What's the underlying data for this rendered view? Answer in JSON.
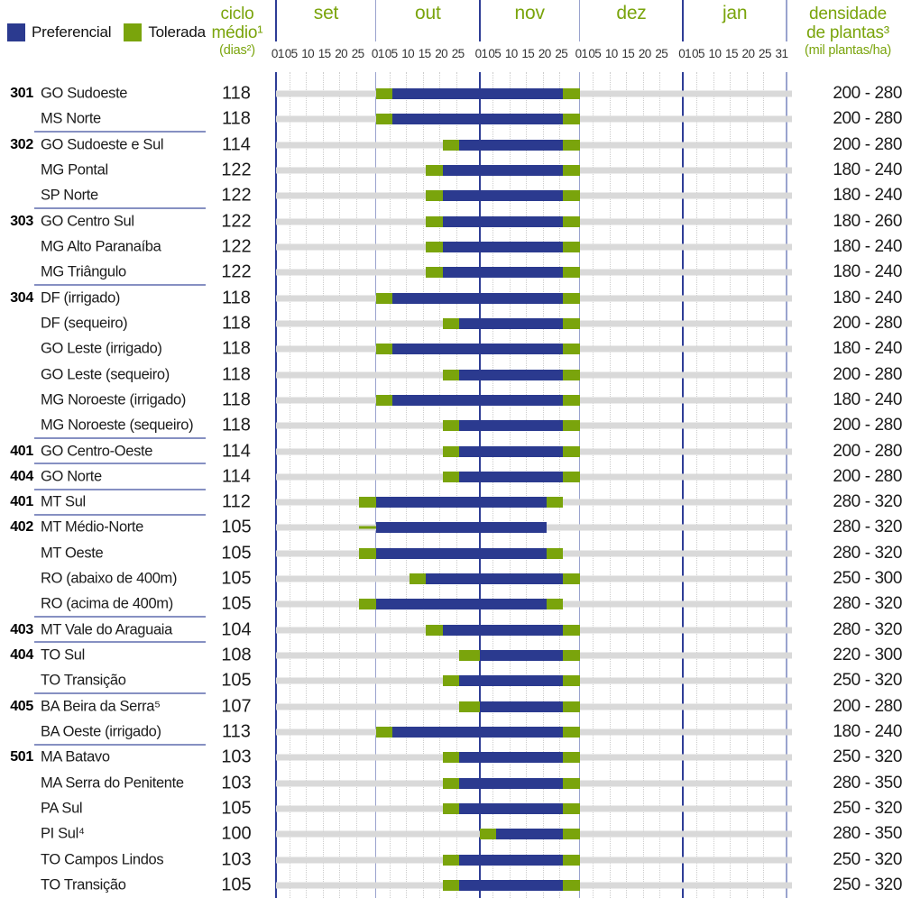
{
  "chart_data": {
    "type": "bar",
    "subtype": "gantt-planting-window",
    "season_note": "day offsets counted from 01/set (0) to 31/jan (153)",
    "season_days": 153,
    "legend": {
      "preferencial": "Preferencial",
      "tolerada": "Tolerada"
    },
    "header": {
      "ciclo": {
        "line1": "ciclo",
        "line2": "médio¹",
        "unit": "(dias²)"
      },
      "densidade": {
        "line1": "densidade",
        "line2": "de plantas³",
        "unit": "(mil plantas/ha)"
      }
    },
    "x_axis": {
      "months": [
        {
          "label": "set",
          "days": 30
        },
        {
          "label": "out",
          "days": 31
        },
        {
          "label": "nov",
          "days": 30
        },
        {
          "label": "dez",
          "days": 31
        },
        {
          "label": "jan",
          "days": 31
        }
      ],
      "tick_labels": [
        "01",
        "05",
        "10",
        "15",
        "20",
        "25"
      ],
      "tick_day_offsets": [
        0,
        4,
        9,
        14,
        19,
        24
      ],
      "last_tick": "31",
      "grid": "dotted daily pentad lines, solid month boundary lines"
    },
    "colors": {
      "preferencial": "#2b3a8f",
      "tolerada": "#7aa40c",
      "header_green": "#7aa40c",
      "track_gray": "#d9d9d9",
      "line_dark": "#2e3d96",
      "line_light": "#9aa3ce",
      "separator": "#8690c2"
    },
    "rows": [
      {
        "code": "301",
        "name": "GO Sudoeste",
        "ciclo": "118",
        "densidade": "200 - 280",
        "seg": [
          30,
          35,
          86,
          91
        ],
        "thin_lead": false,
        "sep": false
      },
      {
        "code": "",
        "name": "MS Norte",
        "ciclo": "118",
        "densidade": "200 - 280",
        "seg": [
          30,
          35,
          86,
          91
        ],
        "thin_lead": false,
        "sep": true
      },
      {
        "code": "302",
        "name": "GO Sudoeste e Sul",
        "ciclo": "114",
        "densidade": "200 - 280",
        "seg": [
          50,
          55,
          86,
          91
        ],
        "thin_lead": false,
        "sep": false
      },
      {
        "code": "",
        "name": "MG Pontal",
        "ciclo": "122",
        "densidade": "180 - 240",
        "seg": [
          45,
          50,
          86,
          91
        ],
        "thin_lead": false,
        "sep": false
      },
      {
        "code": "",
        "name": "SP Norte",
        "ciclo": "122",
        "densidade": "180 - 240",
        "seg": [
          45,
          50,
          86,
          91
        ],
        "thin_lead": false,
        "sep": true
      },
      {
        "code": "303",
        "name": "GO Centro Sul",
        "ciclo": "122",
        "densidade": "180 - 260",
        "seg": [
          45,
          50,
          86,
          91
        ],
        "thin_lead": false,
        "sep": false
      },
      {
        "code": "",
        "name": "MG Alto Paranaíba",
        "ciclo": "122",
        "densidade": "180 - 240",
        "seg": [
          45,
          50,
          86,
          91
        ],
        "thin_lead": false,
        "sep": false
      },
      {
        "code": "",
        "name": "MG Triângulo",
        "ciclo": "122",
        "densidade": "180 - 240",
        "seg": [
          45,
          50,
          86,
          91
        ],
        "thin_lead": false,
        "sep": true
      },
      {
        "code": "304",
        "name": "DF (irrigado)",
        "ciclo": "118",
        "densidade": "180 - 240",
        "seg": [
          30,
          35,
          86,
          91
        ],
        "thin_lead": false,
        "sep": false
      },
      {
        "code": "",
        "name": "DF (sequeiro)",
        "ciclo": "118",
        "densidade": "200 - 280",
        "seg": [
          50,
          55,
          86,
          91
        ],
        "thin_lead": false,
        "sep": false
      },
      {
        "code": "",
        "name": "GO Leste (irrigado)",
        "ciclo": "118",
        "densidade": "180 - 240",
        "seg": [
          30,
          35,
          86,
          91
        ],
        "thin_lead": false,
        "sep": false
      },
      {
        "code": "",
        "name": "GO Leste (sequeiro)",
        "ciclo": "118",
        "densidade": "200 - 280",
        "seg": [
          50,
          55,
          86,
          91
        ],
        "thin_lead": false,
        "sep": false
      },
      {
        "code": "",
        "name": "MG Noroeste (irrigado)",
        "ciclo": "118",
        "densidade": "180 - 240",
        "seg": [
          30,
          35,
          86,
          91
        ],
        "thin_lead": false,
        "sep": false
      },
      {
        "code": "",
        "name": "MG Noroeste (sequeiro)",
        "ciclo": "118",
        "densidade": "200 - 280",
        "seg": [
          50,
          55,
          86,
          91
        ],
        "thin_lead": false,
        "sep": true
      },
      {
        "code": "401",
        "name": "GO Centro-Oeste",
        "ciclo": "114",
        "densidade": "200 - 280",
        "seg": [
          50,
          55,
          86,
          91
        ],
        "thin_lead": false,
        "sep": true
      },
      {
        "code": "404",
        "name": "GO Norte",
        "ciclo": "114",
        "densidade": "200 - 280",
        "seg": [
          50,
          55,
          86,
          91
        ],
        "thin_lead": false,
        "sep": true
      },
      {
        "code": "401",
        "name": "MT Sul",
        "ciclo": "112",
        "densidade": "280 - 320",
        "seg": [
          25,
          30,
          81,
          86
        ],
        "thin_lead": false,
        "sep": true
      },
      {
        "code": "402",
        "name": "MT Médio-Norte",
        "ciclo": "105",
        "densidade": "280 - 320",
        "seg": [
          25,
          30,
          81,
          81
        ],
        "thin_lead": true,
        "sep": false
      },
      {
        "code": "",
        "name": "MT Oeste",
        "ciclo": "105",
        "densidade": "280 - 320",
        "seg": [
          25,
          30,
          81,
          86
        ],
        "thin_lead": false,
        "sep": false
      },
      {
        "code": "",
        "name": "RO (abaixo de 400m)",
        "ciclo": "105",
        "densidade": "250 - 300",
        "seg": [
          40,
          45,
          86,
          91
        ],
        "thin_lead": false,
        "sep": false
      },
      {
        "code": "",
        "name": "RO (acima de 400m)",
        "ciclo": "105",
        "densidade": "280 - 320",
        "seg": [
          25,
          30,
          81,
          86
        ],
        "thin_lead": false,
        "sep": true
      },
      {
        "code": "403",
        "name": "MT Vale do Araguaia",
        "ciclo": "104",
        "densidade": "280 - 320",
        "seg": [
          45,
          50,
          86,
          91
        ],
        "thin_lead": false,
        "sep": true
      },
      {
        "code": "404",
        "name": "TO Sul",
        "ciclo": "108",
        "densidade": "220 - 300",
        "seg": [
          55,
          61,
          86,
          91
        ],
        "thin_lead": false,
        "sep": false
      },
      {
        "code": "",
        "name": "TO Transição",
        "ciclo": "105",
        "densidade": "250 - 320",
        "seg": [
          50,
          55,
          86,
          91
        ],
        "thin_lead": false,
        "sep": true
      },
      {
        "code": "405",
        "name": "BA Beira da Serra⁵",
        "ciclo": "107",
        "densidade": "200 - 280",
        "seg": [
          55,
          61,
          86,
          91
        ],
        "thin_lead": false,
        "sep": false
      },
      {
        "code": "",
        "name": "BA Oeste (irrigado)",
        "ciclo": "113",
        "densidade": "180 - 240",
        "seg": [
          30,
          35,
          86,
          91
        ],
        "thin_lead": false,
        "sep": true
      },
      {
        "code": "501",
        "name": "MA Batavo",
        "ciclo": "103",
        "densidade": "250 - 320",
        "seg": [
          50,
          55,
          86,
          91
        ],
        "thin_lead": false,
        "sep": false
      },
      {
        "code": "",
        "name": "MA Serra do Penitente",
        "ciclo": "103",
        "densidade": "280 - 350",
        "seg": [
          50,
          55,
          86,
          91
        ],
        "thin_lead": false,
        "sep": false
      },
      {
        "code": "",
        "name": "PA Sul",
        "ciclo": "105",
        "densidade": "250 - 320",
        "seg": [
          50,
          55,
          86,
          91
        ],
        "thin_lead": false,
        "sep": false
      },
      {
        "code": "",
        "name": "PI Sul⁴",
        "ciclo": "100",
        "densidade": "280 - 350",
        "seg": [
          61,
          66,
          86,
          91
        ],
        "thin_lead": false,
        "sep": false
      },
      {
        "code": "",
        "name": "TO Campos Lindos",
        "ciclo": "103",
        "densidade": "250 - 320",
        "seg": [
          50,
          55,
          86,
          91
        ],
        "thin_lead": false,
        "sep": false
      },
      {
        "code": "",
        "name": "TO Transição",
        "ciclo": "105",
        "densidade": "250 - 320",
        "seg": [
          50,
          55,
          86,
          91
        ],
        "thin_lead": false,
        "sep": false
      }
    ]
  }
}
